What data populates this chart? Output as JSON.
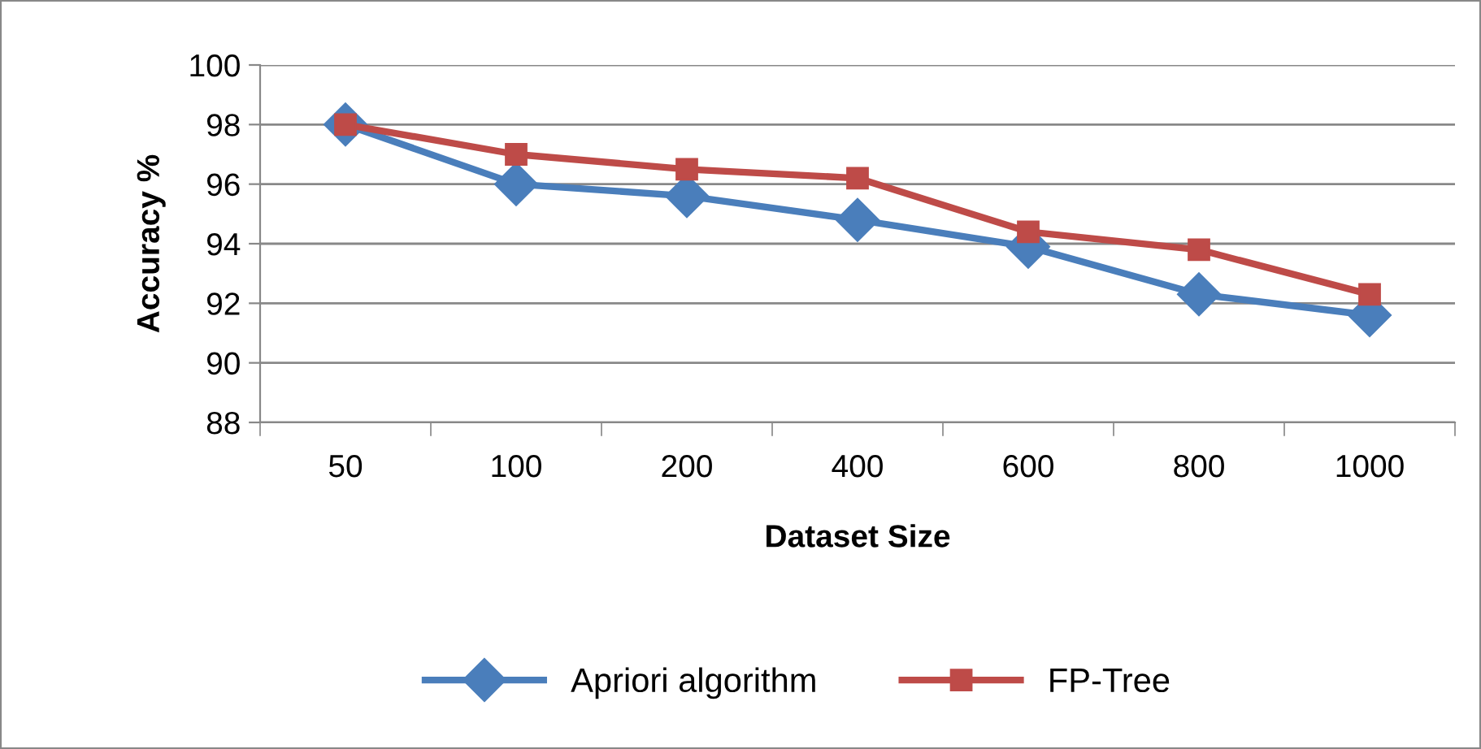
{
  "chart_data": {
    "type": "line",
    "xlabel": "Dataset Size",
    "ylabel": "Accuracy %",
    "categories": [
      "50",
      "100",
      "200",
      "400",
      "600",
      "800",
      "1000"
    ],
    "series": [
      {
        "name": "Apriori algorithm",
        "color": "#4a7ebb",
        "marker": "diamond",
        "values": [
          98,
          96,
          95.6,
          94.8,
          93.9,
          92.3,
          91.6
        ]
      },
      {
        "name": "FP-Tree",
        "color": "#be4b48",
        "marker": "square",
        "values": [
          98,
          97,
          96.5,
          96.2,
          94.4,
          93.8,
          92.3
        ]
      }
    ],
    "ylim": [
      88,
      100
    ],
    "yticks": [
      88,
      90,
      92,
      94,
      96,
      98,
      100
    ],
    "grid": "y",
    "legend": "bottom",
    "line_style": "solid"
  }
}
